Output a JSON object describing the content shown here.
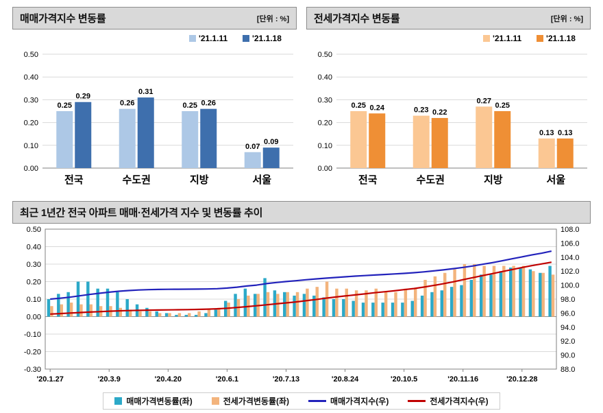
{
  "chart_data": [
    {
      "type": "bar",
      "title": "매매가격지수 변동률",
      "unit": "[단위 : %]",
      "categories": [
        "전국",
        "수도권",
        "지방",
        "서울"
      ],
      "series": [
        {
          "name": "'21.1.11",
          "color": "#adc8e6",
          "values": [
            0.25,
            0.26,
            0.25,
            0.07
          ]
        },
        {
          "name": "'21.1.18",
          "color": "#3e6fad",
          "values": [
            0.29,
            0.31,
            0.26,
            0.09
          ]
        }
      ],
      "ylim": [
        0,
        0.5
      ],
      "yticks": [
        0,
        0.1,
        0.2,
        0.3,
        0.4,
        0.5
      ],
      "grid": true,
      "legend_position": "top-right"
    },
    {
      "type": "bar",
      "title": "전세가격지수 변동률",
      "unit": "[단위 : %]",
      "categories": [
        "전국",
        "수도권",
        "지방",
        "서울"
      ],
      "series": [
        {
          "name": "'21.1.11",
          "color": "#fbc793",
          "values": [
            0.25,
            0.23,
            0.27,
            0.13
          ]
        },
        {
          "name": "'21.1.18",
          "color": "#ef8f35",
          "values": [
            0.24,
            0.22,
            0.25,
            0.13
          ]
        }
      ],
      "ylim": [
        0,
        0.5
      ],
      "yticks": [
        0,
        0.1,
        0.2,
        0.3,
        0.4,
        0.5
      ],
      "grid": true,
      "legend_position": "top-right"
    },
    {
      "type": "bar+line",
      "title": "최근 1년간 전국 아파트 매매·전세가격 지수 및 변동률 추이",
      "n_points": 52,
      "x_tick_indices": [
        0,
        6,
        12,
        18,
        24,
        30,
        36,
        42,
        48
      ],
      "x_tick_labels": [
        "'20.1.27",
        "'20.3.9",
        "'20.4.20",
        "'20.6.1",
        "'20.7.13",
        "'20.8.24",
        "'20.10.5",
        "'20.11.16",
        "'20.12.28"
      ],
      "ylim_left": [
        -0.3,
        0.5
      ],
      "yticks_left": [
        -0.3,
        -0.2,
        -0.1,
        0,
        0.1,
        0.2,
        0.3,
        0.4,
        0.5
      ],
      "ylim_right": [
        88,
        108
      ],
      "yticks_right": [
        88,
        90,
        92,
        94,
        96,
        98,
        100,
        102,
        104,
        106,
        108
      ],
      "grid": true,
      "legend_position": "bottom",
      "bars": [
        {
          "name": "매매가격변동률(좌)",
          "color": "#2ca9c8",
          "axis": "left",
          "values": [
            0.1,
            0.13,
            0.14,
            0.2,
            0.2,
            0.16,
            0.16,
            0.14,
            0.1,
            0.07,
            0.05,
            0.03,
            0.02,
            0.01,
            0.01,
            0.01,
            0.02,
            0.04,
            0.09,
            0.13,
            0.16,
            0.13,
            0.22,
            0.15,
            0.14,
            0.12,
            0.13,
            0.12,
            0.11,
            0.1,
            0.1,
            0.09,
            0.08,
            0.08,
            0.08,
            0.08,
            0.08,
            0.09,
            0.12,
            0.14,
            0.15,
            0.17,
            0.18,
            0.21,
            0.24,
            0.24,
            0.26,
            0.28,
            0.28,
            0.27,
            0.25,
            0.29
          ]
        },
        {
          "name": "전세가격변동률(좌)",
          "color": "#f3b47d",
          "axis": "left",
          "values": [
            0.06,
            0.07,
            0.08,
            0.07,
            0.07,
            0.06,
            0.06,
            0.05,
            0.04,
            0.03,
            0.03,
            0.02,
            0.02,
            0.02,
            0.02,
            0.03,
            0.04,
            0.05,
            0.08,
            0.1,
            0.12,
            0.13,
            0.14,
            0.13,
            0.14,
            0.14,
            0.16,
            0.17,
            0.2,
            0.16,
            0.16,
            0.15,
            0.15,
            0.16,
            0.14,
            0.14,
            0.16,
            0.16,
            0.21,
            0.23,
            0.25,
            0.27,
            0.3,
            0.3,
            0.29,
            0.29,
            0.29,
            0.29,
            0.29,
            0.26,
            0.25,
            0.24
          ]
        }
      ],
      "lines": [
        {
          "name": "매매가격지수(우)",
          "color": "#2222bb",
          "axis": "right",
          "values": [
            98.0,
            98.13,
            98.27,
            98.47,
            98.67,
            98.83,
            98.99,
            99.13,
            99.23,
            99.3,
            99.35,
            99.38,
            99.4,
            99.41,
            99.42,
            99.43,
            99.45,
            99.49,
            99.58,
            99.71,
            99.87,
            100.0,
            100.22,
            100.37,
            100.51,
            100.63,
            100.76,
            100.88,
            100.99,
            101.09,
            101.19,
            101.28,
            101.36,
            101.44,
            101.52,
            101.6,
            101.68,
            101.77,
            101.89,
            102.03,
            102.18,
            102.35,
            102.53,
            102.74,
            102.98,
            103.22,
            103.48,
            103.76,
            104.04,
            104.31,
            104.56,
            104.85
          ]
        },
        {
          "name": "전세가격지수(우)",
          "color": "#c00000",
          "axis": "right",
          "values": [
            95.86,
            95.93,
            96.01,
            96.08,
            96.15,
            96.21,
            96.27,
            96.32,
            96.36,
            96.39,
            96.42,
            96.44,
            96.46,
            96.48,
            96.5,
            96.53,
            96.57,
            96.62,
            96.7,
            96.8,
            96.92,
            97.05,
            97.19,
            97.32,
            97.46,
            97.6,
            97.76,
            97.93,
            98.13,
            98.29,
            98.45,
            98.6,
            98.75,
            98.91,
            99.05,
            99.19,
            99.35,
            99.51,
            99.72,
            99.95,
            100.2,
            100.47,
            100.77,
            101.07,
            101.36,
            101.65,
            101.94,
            102.23,
            102.52,
            102.78,
            103.03,
            103.27
          ]
        }
      ]
    }
  ]
}
